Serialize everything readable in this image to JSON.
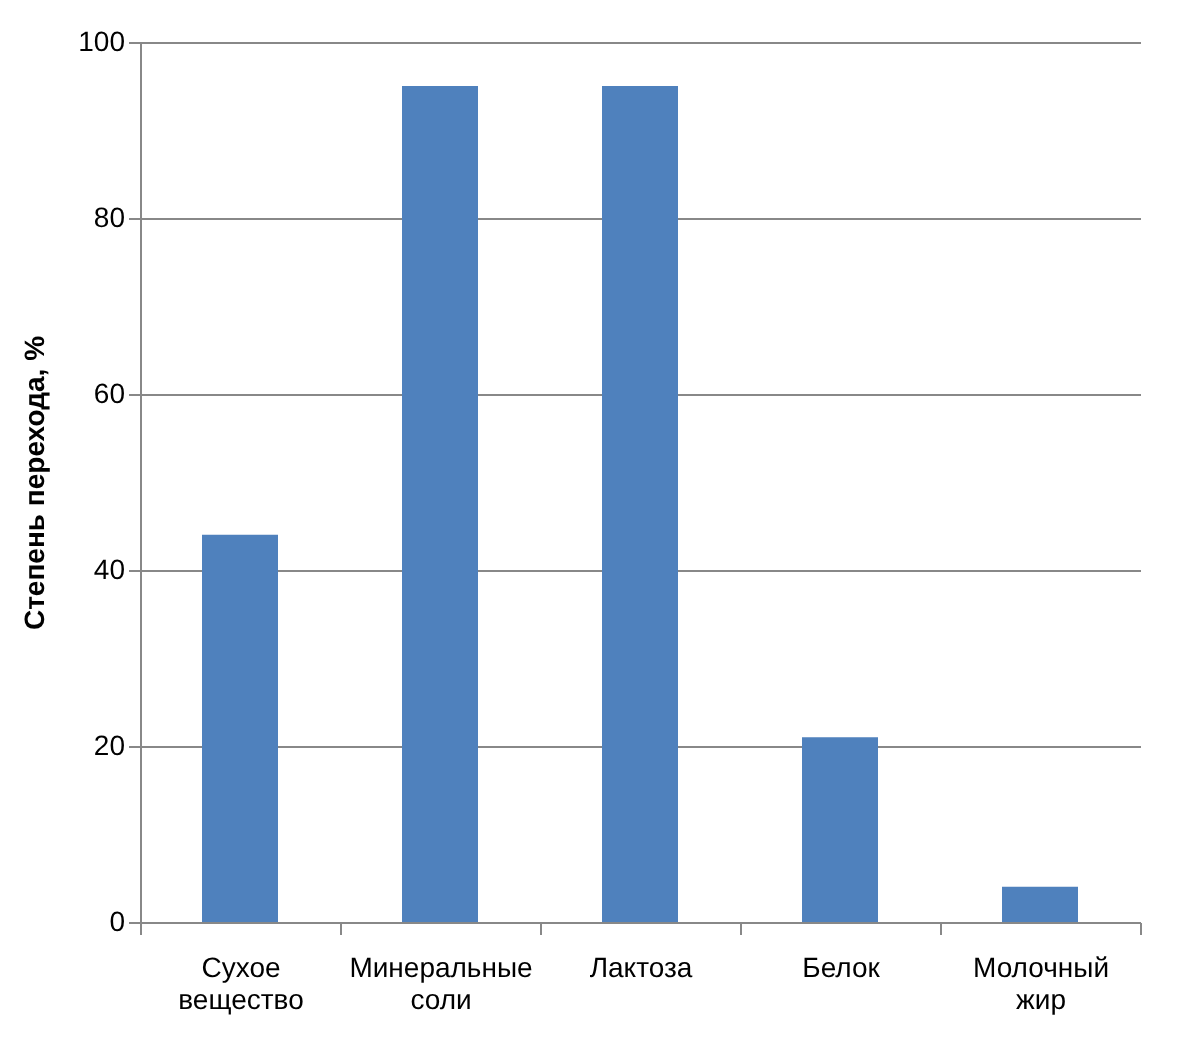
{
  "chart_data": {
    "type": "bar",
    "ylabel": "Степень перехода, %",
    "categories": [
      "Сухое вещество",
      "Минеральные соли",
      "Лактоза",
      "Белок",
      "Молочный жир"
    ],
    "values": [
      44,
      95,
      95,
      21,
      4
    ],
    "color": "#4f81bd",
    "ylim": [
      0,
      100
    ],
    "yticks": [
      0,
      20,
      40,
      60,
      80,
      100
    ],
    "grid": "y"
  }
}
